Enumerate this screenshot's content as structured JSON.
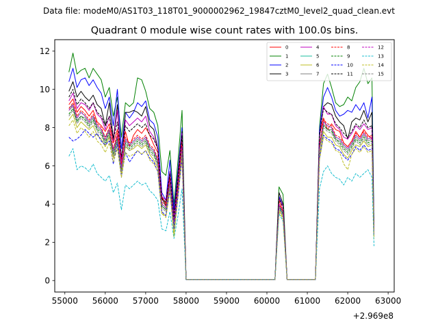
{
  "chart_data": {
    "type": "line",
    "suptitle": "Data file: modeM0/AS1T03_118T01_9000002962_19847cztM0_level2_quad_clean.evt",
    "title": "Quadrant 0 module wise count rates with 100.0s bins.",
    "xlabel": "",
    "ylabel": "",
    "x_offset_label": "+2.969e8",
    "xlim": [
      54750,
      63150
    ],
    "ylim": [
      -0.6,
      12.6
    ],
    "x_ticks": [
      55000,
      56000,
      57000,
      58000,
      59000,
      60000,
      61000,
      62000,
      63000
    ],
    "x_tick_labels": [
      "55000",
      "56000",
      "57000",
      "58000",
      "59000",
      "60000",
      "61000",
      "62000",
      "63000"
    ],
    "y_ticks": [
      0,
      2,
      4,
      6,
      8,
      10,
      12
    ],
    "y_tick_labels": [
      "0",
      "2",
      "4",
      "6",
      "8",
      "10",
      "12"
    ],
    "grid": false,
    "legend_position": "top-right",
    "x": [
      55100,
      55200,
      55300,
      55400,
      55500,
      55600,
      55700,
      55800,
      55900,
      56000,
      56100,
      56200,
      56300,
      56400,
      56500,
      56600,
      56700,
      56800,
      56900,
      57000,
      57100,
      57200,
      57300,
      57400,
      57500,
      57600,
      57700,
      57800,
      57900,
      58000,
      58100,
      60200,
      60300,
      60400,
      60500,
      61200,
      61300,
      61400,
      61500,
      61600,
      61700,
      61800,
      61900,
      62000,
      62100,
      62200,
      62300,
      62400,
      62500,
      62600,
      62650
    ],
    "series": [
      {
        "name": "0",
        "color": "#ff0000",
        "dash": "solid",
        "values": [
          9.2,
          9.5,
          8.8,
          9.1,
          8.9,
          8.6,
          8.9,
          8.3,
          8.1,
          7.8,
          8.2,
          7.2,
          7.9,
          6.4,
          7.8,
          7.0,
          7.6,
          7.9,
          7.7,
          8.0,
          7.6,
          7.1,
          6.7,
          4.4,
          4.0,
          5.5,
          3.1,
          5.1,
          7.5,
          0.05,
          0.05,
          0.05,
          4.2,
          3.6,
          0.05,
          0.05,
          7.6,
          8.5,
          7.9,
          8.2,
          7.9,
          7.8,
          7.2,
          7.0,
          7.3,
          7.8,
          7.5,
          7.9,
          7.6,
          7.4,
          2.6
        ]
      },
      {
        "name": "1",
        "color": "#008000",
        "dash": "solid",
        "values": [
          10.9,
          11.9,
          10.8,
          11.0,
          11.1,
          10.6,
          11.1,
          10.8,
          10.5,
          9.6,
          10.1,
          8.6,
          9.6,
          7.5,
          9.3,
          9.1,
          9.3,
          10.6,
          10.5,
          9.9,
          9.0,
          8.8,
          8.1,
          5.7,
          5.5,
          6.8,
          4.0,
          6.3,
          8.9,
          0.05,
          0.05,
          0.05,
          4.9,
          4.5,
          0.05,
          0.05,
          8.0,
          10.3,
          10.8,
          10.1,
          9.3,
          9.1,
          9.2,
          9.6,
          9.4,
          10.1,
          10.4,
          11.1,
          10.3,
          10.6,
          2.8
        ]
      },
      {
        "name": "2",
        "color": "#0000ff",
        "dash": "solid",
        "values": [
          10.4,
          11.1,
          10.1,
          10.5,
          10.6,
          10.2,
          10.5,
          10.1,
          9.8,
          9.0,
          9.6,
          8.1,
          10.0,
          6.9,
          8.8,
          8.5,
          8.8,
          9.3,
          9.1,
          9.4,
          8.4,
          8.2,
          7.5,
          4.6,
          4.2,
          6.3,
          3.7,
          5.8,
          8.0,
          0.05,
          0.05,
          0.05,
          4.4,
          3.9,
          0.05,
          0.05,
          7.8,
          9.6,
          10.1,
          9.6,
          8.9,
          8.6,
          8.7,
          8.9,
          8.8,
          9.2,
          8.9,
          9.3,
          8.5,
          9.6,
          2.6
        ]
      },
      {
        "name": "3",
        "color": "#000000",
        "dash": "solid",
        "values": [
          9.9,
          10.4,
          9.6,
          9.9,
          9.6,
          9.4,
          9.7,
          9.2,
          9.0,
          8.1,
          9.3,
          7.4,
          9.2,
          6.2,
          8.8,
          8.8,
          8.9,
          8.8,
          8.6,
          9.1,
          8.1,
          7.9,
          6.9,
          4.3,
          3.9,
          5.7,
          3.4,
          5.6,
          7.8,
          0.05,
          0.05,
          0.05,
          4.6,
          4.0,
          0.05,
          0.05,
          7.5,
          9.1,
          9.3,
          9.2,
          8.6,
          8.3,
          8.1,
          7.4,
          8.3,
          8.5,
          8.4,
          8.9,
          8.3,
          8.8,
          2.5
        ]
      },
      {
        "name": "4",
        "color": "#bf00bf",
        "dash": "solid",
        "values": [
          9.4,
          9.8,
          9.0,
          9.3,
          9.2,
          8.9,
          9.3,
          8.7,
          8.5,
          7.9,
          8.6,
          7.3,
          8.9,
          6.1,
          8.4,
          8.1,
          8.3,
          8.5,
          8.3,
          8.6,
          7.8,
          7.5,
          6.9,
          4.4,
          4.2,
          5.7,
          3.3,
          5.4,
          7.7,
          0.05,
          0.05,
          0.05,
          4.3,
          3.9,
          0.05,
          0.05,
          7.6,
          9.1,
          8.7,
          8.7,
          8.1,
          7.9,
          7.5,
          7.4,
          7.7,
          8.1,
          7.9,
          8.2,
          7.9,
          8.0,
          2.5
        ]
      },
      {
        "name": "5",
        "color": "#1abc9c",
        "dash": "solid",
        "values": [
          9.0,
          9.2,
          8.5,
          8.8,
          8.6,
          8.3,
          8.6,
          8.1,
          7.9,
          7.5,
          7.9,
          6.8,
          7.6,
          6.0,
          7.4,
          7.1,
          7.3,
          7.5,
          7.3,
          7.5,
          7.0,
          6.8,
          6.3,
          4.0,
          3.8,
          5.2,
          3.0,
          4.8,
          7.0,
          0.05,
          0.05,
          0.05,
          3.9,
          3.5,
          0.05,
          0.05,
          7.0,
          8.3,
          8.1,
          8.0,
          7.5,
          7.4,
          7.1,
          6.9,
          7.2,
          7.6,
          7.4,
          7.7,
          7.4,
          7.5,
          2.4
        ]
      },
      {
        "name": "6",
        "color": "#bcbd22",
        "dash": "solid",
        "values": [
          8.4,
          8.7,
          8.0,
          8.3,
          8.1,
          7.9,
          8.1,
          7.6,
          7.4,
          7.0,
          7.5,
          6.4,
          7.1,
          5.6,
          7.0,
          6.8,
          6.9,
          7.1,
          6.9,
          7.1,
          6.6,
          6.3,
          5.9,
          3.5,
          3.4,
          4.8,
          2.4,
          4.5,
          6.6,
          0.05,
          0.05,
          0.05,
          3.7,
          3.3,
          0.05,
          0.05,
          6.5,
          7.8,
          7.5,
          7.5,
          7.1,
          7.0,
          6.6,
          6.4,
          6.8,
          7.1,
          7.0,
          7.3,
          7.0,
          7.1,
          2.3
        ]
      },
      {
        "name": "7",
        "color": "#7f7f7f",
        "dash": "solid",
        "values": [
          8.9,
          9.1,
          8.4,
          8.6,
          8.5,
          8.2,
          8.5,
          8.0,
          7.8,
          7.3,
          7.8,
          6.6,
          7.5,
          5.8,
          7.3,
          7.0,
          7.2,
          7.4,
          7.2,
          7.4,
          6.9,
          6.7,
          6.2,
          3.9,
          3.7,
          5.1,
          2.9,
          4.8,
          6.9,
          0.05,
          0.05,
          0.05,
          3.9,
          3.5,
          0.05,
          0.05,
          6.9,
          8.2,
          7.9,
          7.9,
          7.4,
          7.3,
          7.0,
          6.8,
          7.1,
          7.5,
          7.3,
          7.6,
          7.3,
          7.4,
          2.4
        ]
      },
      {
        "name": "8",
        "color": "#ff0000",
        "dash": "dashed",
        "values": [
          9.0,
          9.3,
          8.6,
          8.9,
          8.7,
          8.4,
          8.7,
          8.2,
          8.0,
          7.5,
          8.0,
          6.9,
          7.7,
          6.1,
          7.5,
          7.2,
          7.4,
          7.6,
          7.4,
          7.6,
          7.1,
          6.9,
          6.4,
          4.1,
          3.9,
          5.3,
          3.0,
          4.9,
          7.1,
          0.05,
          0.05,
          0.05,
          4.0,
          3.6,
          0.05,
          0.05,
          7.1,
          8.4,
          8.2,
          8.1,
          7.6,
          7.5,
          7.2,
          7.0,
          7.3,
          7.7,
          7.5,
          7.8,
          7.5,
          7.6,
          2.5
        ]
      },
      {
        "name": "9",
        "color": "#008000",
        "dash": "dashed",
        "values": [
          8.7,
          9.0,
          8.3,
          8.6,
          8.4,
          8.1,
          8.4,
          7.9,
          7.7,
          7.2,
          7.7,
          6.6,
          7.4,
          5.8,
          7.2,
          6.9,
          7.1,
          7.3,
          7.1,
          7.3,
          6.8,
          6.6,
          6.1,
          3.9,
          3.7,
          5.1,
          2.9,
          4.7,
          6.9,
          0.05,
          0.05,
          0.05,
          3.9,
          3.5,
          0.05,
          0.05,
          6.9,
          8.1,
          7.9,
          7.8,
          7.4,
          7.2,
          6.9,
          6.7,
          7.0,
          7.4,
          7.2,
          7.5,
          7.2,
          7.3,
          2.4
        ]
      },
      {
        "name": "10",
        "color": "#0000ff",
        "dash": "dashed",
        "values": [
          7.5,
          7.3,
          7.4,
          7.6,
          7.9,
          7.7,
          7.5,
          7.7,
          7.3,
          7.1,
          7.3,
          6.1,
          7.2,
          5.4,
          6.7,
          6.2,
          6.5,
          6.8,
          6.6,
          6.8,
          6.4,
          6.2,
          5.7,
          3.6,
          3.4,
          4.7,
          2.7,
          4.4,
          6.4,
          0.05,
          0.05,
          0.05,
          3.8,
          3.4,
          0.05,
          0.05,
          6.4,
          7.6,
          7.4,
          7.3,
          6.9,
          6.8,
          6.5,
          6.3,
          6.6,
          7.0,
          6.8,
          7.1,
          6.8,
          6.9,
          2.3
        ]
      },
      {
        "name": "11",
        "color": "#000000",
        "dash": "dashed",
        "values": [
          9.6,
          10.0,
          9.2,
          9.5,
          9.3,
          9.0,
          9.3,
          8.8,
          8.6,
          8.1,
          8.6,
          7.4,
          8.3,
          6.5,
          8.1,
          7.8,
          8.0,
          8.2,
          8.0,
          8.2,
          7.6,
          7.4,
          6.9,
          4.3,
          4.1,
          5.6,
          3.2,
          5.3,
          7.6,
          0.05,
          0.05,
          0.05,
          4.3,
          3.8,
          0.05,
          0.05,
          7.6,
          9.0,
          8.8,
          8.7,
          8.2,
          8.0,
          7.7,
          7.5,
          7.8,
          8.2,
          8.0,
          8.4,
          8.0,
          8.1,
          2.6
        ]
      },
      {
        "name": "12",
        "color": "#bf00bf",
        "dash": "dashed",
        "values": [
          8.9,
          9.2,
          8.5,
          8.8,
          8.6,
          8.3,
          8.6,
          8.1,
          7.9,
          7.4,
          7.9,
          6.8,
          7.6,
          5.9,
          7.4,
          7.1,
          7.3,
          7.5,
          7.3,
          7.5,
          7.0,
          6.8,
          6.3,
          4.0,
          3.8,
          5.2,
          3.0,
          4.8,
          7.0,
          0.05,
          0.05,
          0.05,
          4.0,
          3.6,
          0.05,
          0.05,
          7.0,
          8.3,
          8.1,
          8.0,
          7.5,
          7.4,
          7.1,
          6.9,
          7.2,
          7.6,
          7.4,
          7.7,
          7.4,
          7.5,
          2.5
        ]
      },
      {
        "name": "13",
        "color": "#17becf",
        "dash": "dashed",
        "values": [
          6.5,
          6.9,
          5.8,
          6.0,
          5.9,
          5.7,
          6.1,
          5.6,
          5.4,
          5.2,
          5.5,
          4.6,
          5.1,
          3.7,
          5.0,
          4.8,
          5.0,
          5.2,
          5.0,
          5.1,
          4.7,
          4.5,
          4.2,
          2.7,
          2.6,
          3.6,
          2.2,
          3.4,
          4.8,
          0.05,
          0.05,
          0.05,
          3.5,
          3.1,
          0.05,
          0.05,
          4.8,
          5.7,
          6.0,
          5.6,
          5.4,
          5.3,
          5.0,
          5.4,
          5.2,
          5.6,
          5.4,
          5.6,
          5.8,
          5.4,
          1.8
        ]
      },
      {
        "name": "14",
        "color": "#bcbd22",
        "dash": "dashed",
        "values": [
          8.1,
          8.4,
          7.7,
          8.0,
          7.8,
          7.5,
          7.8,
          7.3,
          7.1,
          6.7,
          7.2,
          6.2,
          6.9,
          5.4,
          6.7,
          6.5,
          6.6,
          6.8,
          6.6,
          6.8,
          6.3,
          6.1,
          5.7,
          3.5,
          3.3,
          4.7,
          2.3,
          4.4,
          6.4,
          0.05,
          0.05,
          0.05,
          3.6,
          3.2,
          0.05,
          0.05,
          6.3,
          7.5,
          7.3,
          7.2,
          6.8,
          6.7,
          6.1,
          5.8,
          6.6,
          6.9,
          6.7,
          7.0,
          6.7,
          6.8,
          2.2
        ]
      },
      {
        "name": "15",
        "color": "#7f7f7f",
        "dash": "dashed",
        "values": [
          8.6,
          8.9,
          8.2,
          8.5,
          8.3,
          8.0,
          8.3,
          7.8,
          7.6,
          7.1,
          7.6,
          6.5,
          7.3,
          5.7,
          7.1,
          6.8,
          7.0,
          7.2,
          7.0,
          7.2,
          6.7,
          6.5,
          6.0,
          3.8,
          3.6,
          5.0,
          2.8,
          4.6,
          6.8,
          0.05,
          0.05,
          0.05,
          3.8,
          3.4,
          0.05,
          0.05,
          6.8,
          8.0,
          7.8,
          7.7,
          7.3,
          7.1,
          6.8,
          6.6,
          6.9,
          7.3,
          7.1,
          7.4,
          7.1,
          7.2,
          2.4
        ]
      }
    ]
  }
}
